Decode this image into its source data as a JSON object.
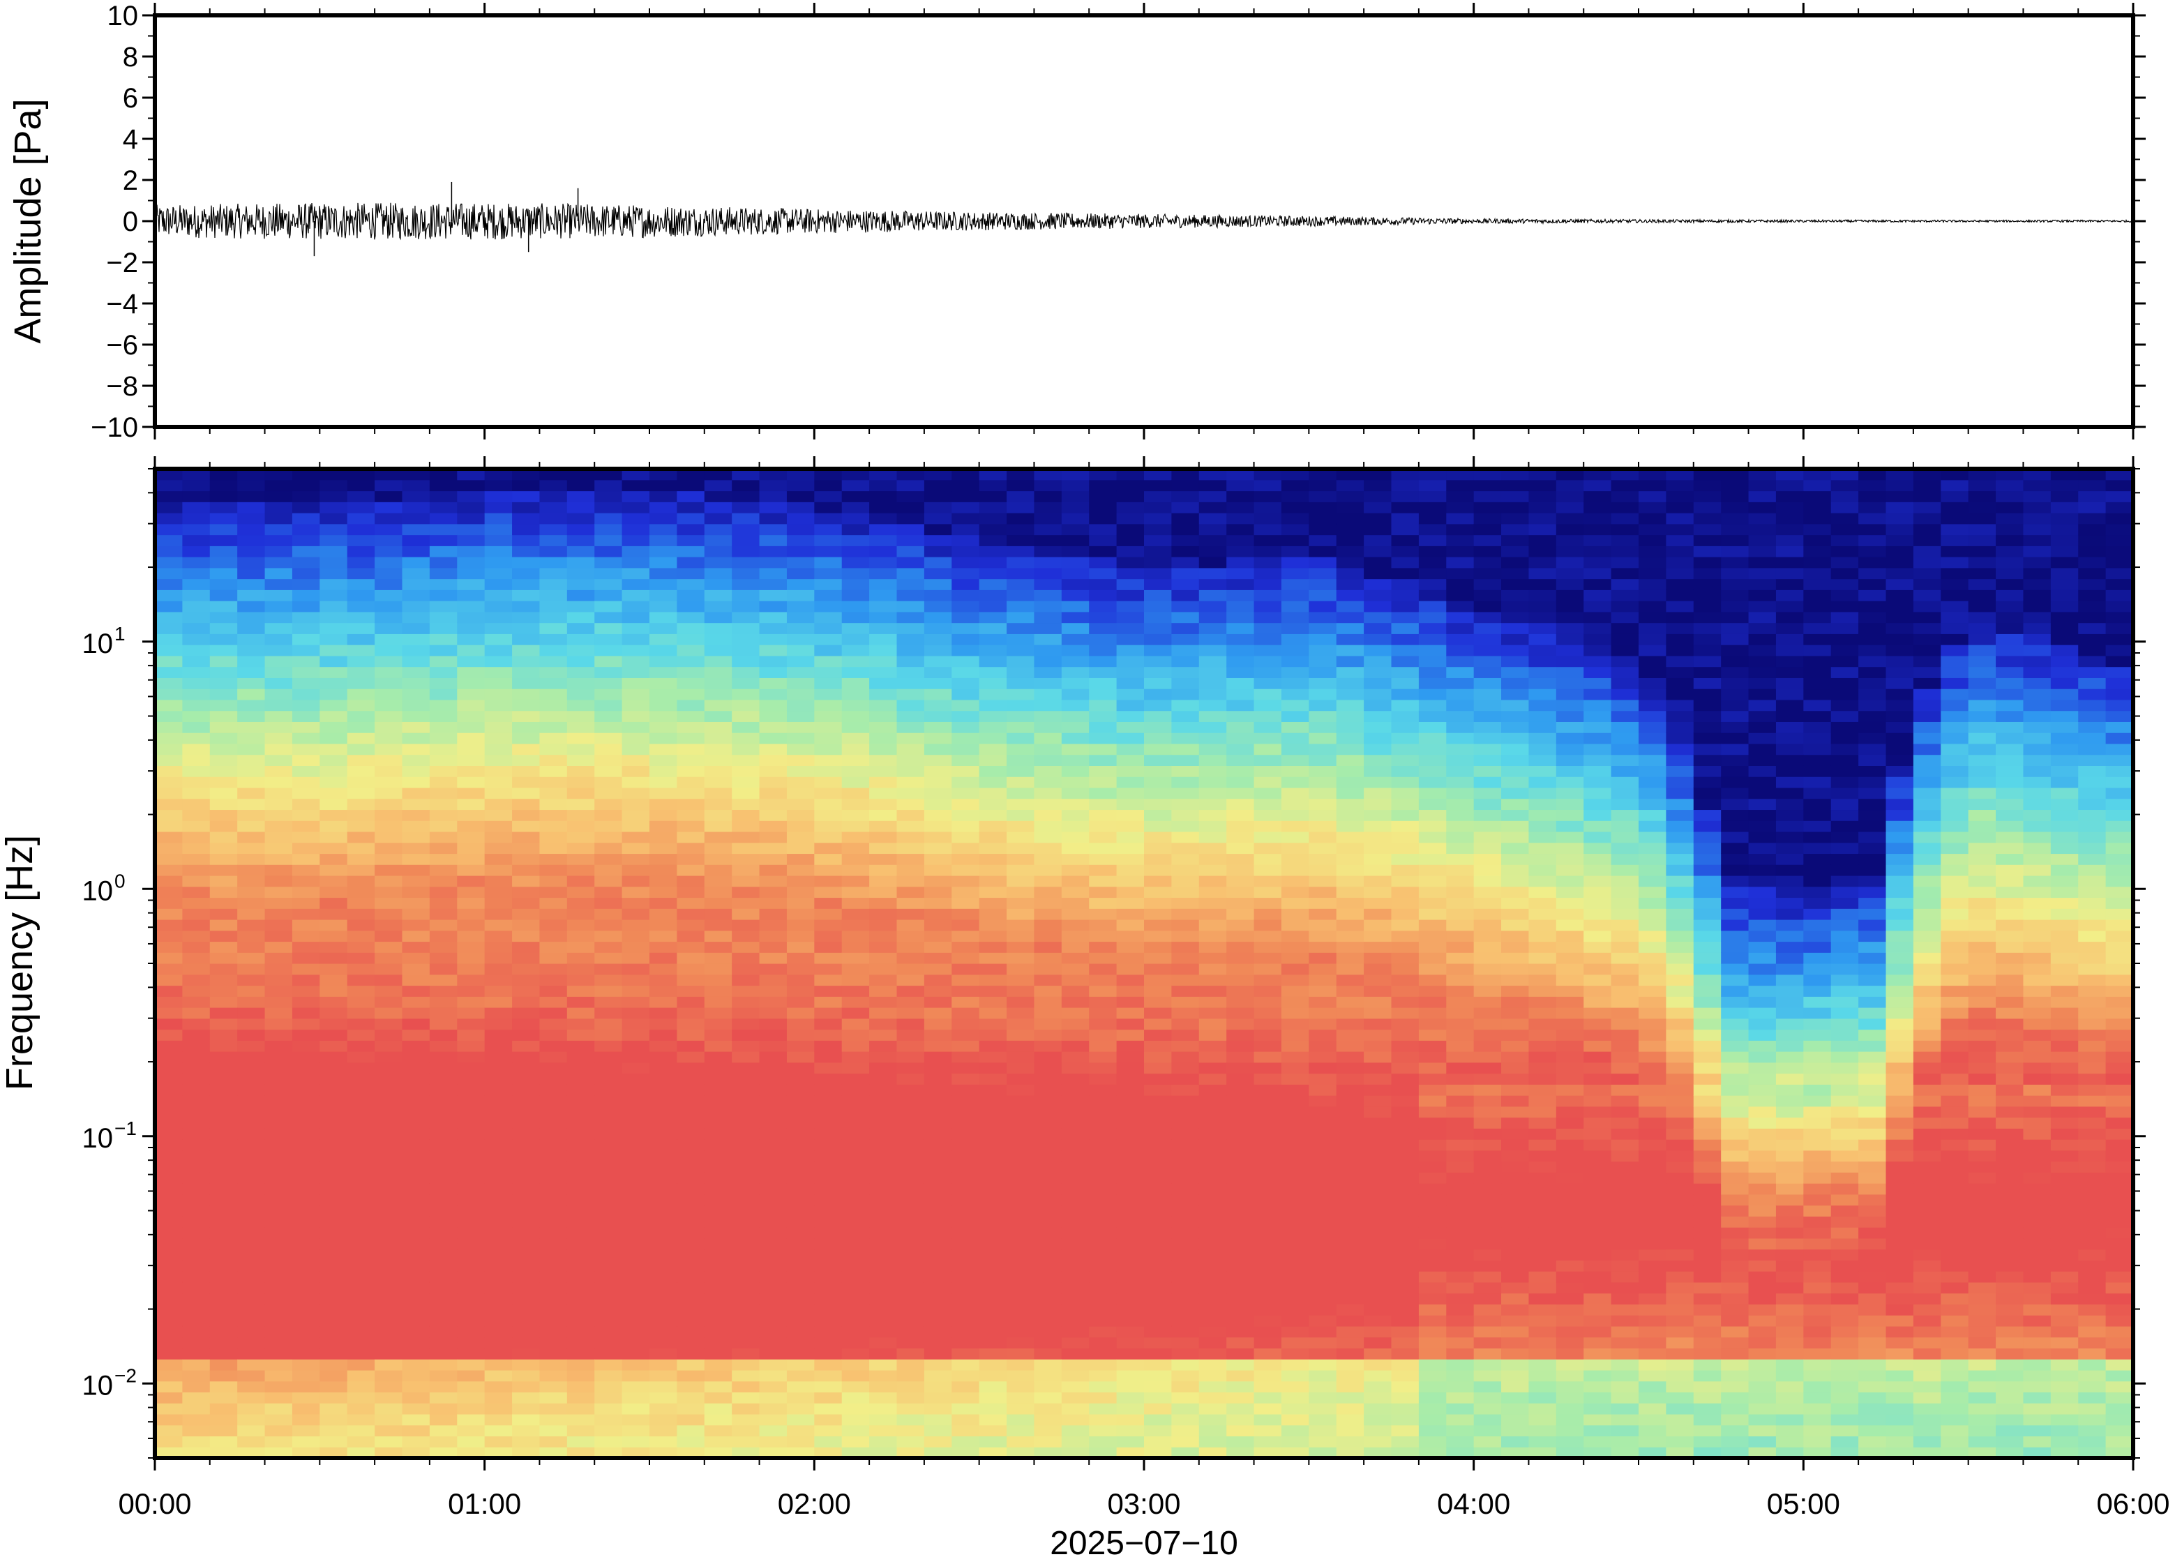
{
  "chart_data": [
    {
      "type": "line",
      "panel": "waveform",
      "title": "",
      "xlabel": "",
      "ylabel": "Amplitude [Pa]",
      "xlim": [
        "00:00",
        "06:00"
      ],
      "ylim": [
        -10,
        10
      ],
      "y_ticks": [
        10,
        8,
        6,
        4,
        2,
        0,
        -2,
        -4,
        -6,
        -8,
        -10
      ],
      "y_tick_labels": [
        "10",
        "8",
        "6",
        "4",
        "2",
        "0",
        "−2",
        "−4",
        "−6",
        "−8",
        "−10"
      ],
      "grid": false,
      "envelope": {
        "time_hours": [
          0.0,
          0.5,
          1.0,
          1.5,
          2.0,
          2.5,
          3.0,
          3.5,
          4.0,
          4.5,
          5.0,
          5.5,
          6.0
        ],
        "peak_amplitude_pa": [
          0.8,
          0.9,
          0.9,
          0.8,
          0.6,
          0.45,
          0.35,
          0.25,
          0.12,
          0.08,
          0.06,
          0.05,
          0.05
        ]
      },
      "notable_spikes": [
        {
          "time": "00:54",
          "value": 1.9
        },
        {
          "time": "01:17",
          "value": 1.6
        },
        {
          "time": "00:29",
          "value": -1.7
        },
        {
          "time": "01:08",
          "value": -1.5
        }
      ],
      "line_color": "#000000"
    },
    {
      "type": "heatmap",
      "panel": "spectrogram",
      "title": "",
      "xlabel": "2025−07−10",
      "ylabel": "Frequency [Hz]",
      "x_tick_labels": [
        "00:00",
        "01:00",
        "02:00",
        "03:00",
        "04:00",
        "05:00",
        "06:00"
      ],
      "y_scale": "log",
      "ylim_hz": [
        0.005,
        50
      ],
      "y_ticks_hz": [
        10,
        1,
        0.1,
        0.01
      ],
      "y_tick_labels": [
        {
          "base": "10",
          "exp": "1"
        },
        {
          "base": "10",
          "exp": "0"
        },
        {
          "base": "10",
          "exp": "−1"
        },
        {
          "base": "10",
          "exp": "−2"
        }
      ],
      "colormap": "jet",
      "colormap_stops": [
        "#0a0a78",
        "#1f30d8",
        "#2f9af0",
        "#5ad8e8",
        "#a8ecaa",
        "#f2ee88",
        "#f8c070",
        "#f08858",
        "#e85050"
      ],
      "colorbar_shown": false,
      "time_hours": [
        0.0,
        0.5,
        1.0,
        1.5,
        2.0,
        2.5,
        3.0,
        3.5,
        4.0,
        4.5,
        4.75,
        5.0,
        5.25,
        5.5,
        6.0
      ],
      "low_power_cutoff_hz": [
        35,
        35,
        40,
        40,
        35,
        25,
        20,
        22,
        14,
        8,
        1.0,
        1.0,
        1.2,
        12,
        8
      ],
      "peak_power_band_hz": [
        0.02,
        0.15
      ],
      "high_power_until_hour": 3.7,
      "intensity_note": "values are relative colormap level 0..1 (no colorbar shown)"
    }
  ]
}
